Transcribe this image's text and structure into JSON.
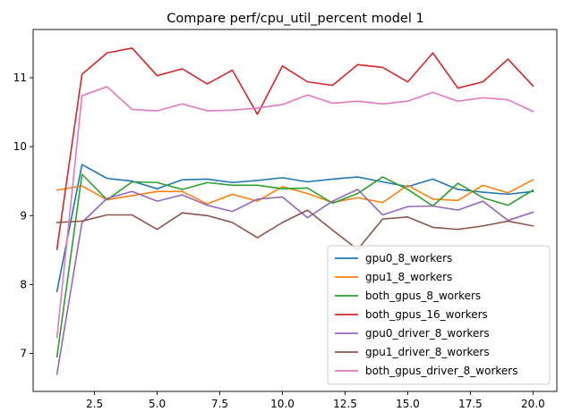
{
  "chart_data": {
    "type": "line",
    "title": "Compare perf/cpu_util_percent model 1",
    "xlabel": "",
    "ylabel": "",
    "xlim": [
      0.05,
      20.95
    ],
    "ylim": [
      6.45,
      11.7
    ],
    "xticks": [
      2.5,
      5.0,
      7.5,
      10.0,
      12.5,
      15.0,
      17.5,
      20.0
    ],
    "xtick_labels": [
      "2.5",
      "5.0",
      "7.5",
      "10.0",
      "12.5",
      "15.0",
      "17.5",
      "20.0"
    ],
    "yticks": [
      7,
      8,
      9,
      10,
      11
    ],
    "ytick_labels": [
      "7",
      "8",
      "9",
      "10",
      "11"
    ],
    "grid": false,
    "legend_position": "lower-right",
    "x": [
      1,
      2,
      3,
      4,
      5,
      6,
      7,
      8,
      9,
      10,
      11,
      12,
      13,
      14,
      15,
      16,
      17,
      18,
      19,
      20
    ],
    "series": [
      {
        "name": "gpu0_8_workers",
        "color": "#1f77b4",
        "values": [
          7.9,
          9.74,
          9.54,
          9.5,
          9.39,
          9.52,
          9.53,
          9.48,
          9.51,
          9.55,
          9.49,
          9.53,
          9.56,
          9.49,
          9.42,
          9.53,
          9.38,
          9.34,
          9.31,
          9.35
        ]
      },
      {
        "name": "gpu1_8_workers",
        "color": "#ff7f0e",
        "values": [
          9.37,
          9.43,
          9.23,
          9.29,
          9.35,
          9.35,
          9.17,
          9.31,
          9.21,
          9.42,
          9.32,
          9.19,
          9.26,
          9.19,
          9.44,
          9.24,
          9.22,
          9.44,
          9.33,
          9.52
        ]
      },
      {
        "name": "both_gpus_8_workers",
        "color": "#2ca02c",
        "values": [
          6.95,
          9.6,
          9.23,
          9.49,
          9.48,
          9.38,
          9.48,
          9.44,
          9.44,
          9.39,
          9.4,
          9.18,
          9.32,
          9.56,
          9.38,
          9.14,
          9.47,
          9.26,
          9.15,
          9.37
        ]
      },
      {
        "name": "both_gpus_16_workers",
        "color": "#d62728",
        "values": [
          8.51,
          11.05,
          11.36,
          11.43,
          11.03,
          11.13,
          10.91,
          11.11,
          10.47,
          11.17,
          10.94,
          10.89,
          11.19,
          11.15,
          10.94,
          11.36,
          10.85,
          10.94,
          11.27,
          10.88
        ]
      },
      {
        "name": "gpu0_driver_8_workers",
        "color": "#9467bd",
        "values": [
          6.7,
          8.9,
          9.25,
          9.35,
          9.21,
          9.3,
          9.15,
          9.06,
          9.24,
          9.27,
          8.97,
          9.21,
          9.38,
          9.01,
          9.13,
          9.14,
          9.08,
          9.21,
          8.93,
          9.05
        ]
      },
      {
        "name": "gpu1_driver_8_workers",
        "color": "#8c564b",
        "values": [
          8.9,
          8.92,
          9.01,
          9.01,
          8.8,
          9.04,
          9.0,
          8.9,
          8.68,
          8.9,
          9.08,
          8.79,
          8.51,
          8.95,
          8.98,
          8.83,
          8.8,
          8.85,
          8.92,
          8.85
        ]
      },
      {
        "name": "both_gpus_driver_8_workers",
        "color": "#e377c2",
        "values": [
          7.23,
          10.74,
          10.87,
          10.54,
          10.52,
          10.62,
          10.52,
          10.53,
          10.56,
          10.61,
          10.75,
          10.63,
          10.66,
          10.62,
          10.66,
          10.79,
          10.66,
          10.71,
          10.68,
          10.51
        ]
      }
    ]
  }
}
